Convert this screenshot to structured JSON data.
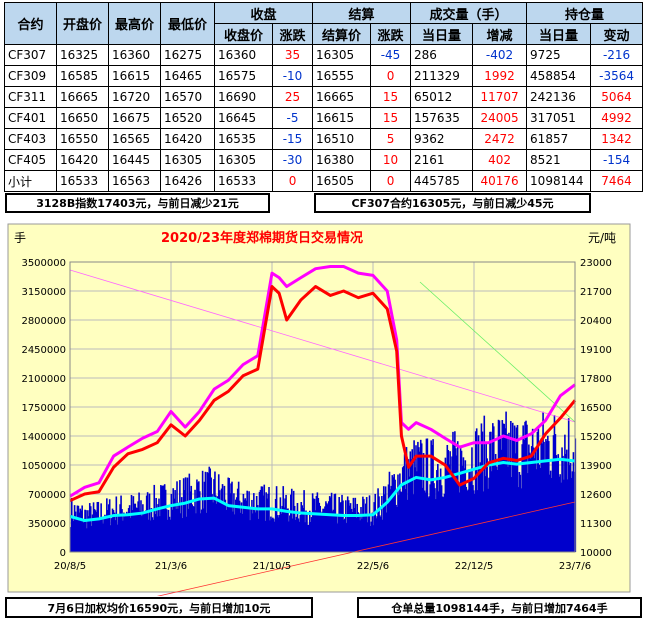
{
  "table": {
    "group_headers": [
      "收盘",
      "结算",
      "成交量（手）",
      "持仓量"
    ],
    "column_headers": [
      "合约",
      "开盘价",
      "最高价",
      "最低价",
      "收盘价",
      "涨跌",
      "结算价",
      "涨跌",
      "当日量",
      "增减",
      "当日量",
      "变动"
    ],
    "rows": [
      [
        "CF307",
        "16325",
        "16360",
        "16275",
        "16360",
        "35",
        "16305",
        "-45",
        "286",
        "-402",
        "9725",
        "-216"
      ],
      [
        "CF309",
        "16585",
        "16615",
        "16465",
        "16575",
        "-10",
        "16555",
        "0",
        "211329",
        "1992",
        "458854",
        "-3564"
      ],
      [
        "CF311",
        "16665",
        "16720",
        "16570",
        "16690",
        "25",
        "16665",
        "15",
        "65012",
        "11707",
        "242136",
        "5064"
      ],
      [
        "CF401",
        "16650",
        "16675",
        "16520",
        "16645",
        "-5",
        "16615",
        "15",
        "157635",
        "24005",
        "317051",
        "4992"
      ],
      [
        "CF403",
        "16550",
        "16565",
        "16420",
        "16535",
        "-15",
        "16510",
        "5",
        "9362",
        "2472",
        "61857",
        "1342"
      ],
      [
        "CF405",
        "16420",
        "16445",
        "16305",
        "16305",
        "-30",
        "16380",
        "10",
        "2161",
        "402",
        "8521",
        "-154"
      ],
      [
        "小计",
        "16533",
        "16563",
        "16426",
        "16533",
        "0",
        "16505",
        "0",
        "445785",
        "40176",
        "1098144",
        "7464"
      ]
    ]
  },
  "notes": {
    "index_note": "3128B指数17403元，与前日减少21元",
    "contract_note": "CF307合约16305元，与前日减少45元",
    "avg_price_note": "7月6日加权均价16590元，与前日增加10元",
    "position_note": "仓单总量1098144手，与前日增加7464手"
  },
  "colors": {
    "background": "#ffffc0",
    "title": "#ff0000",
    "close_line": "#ff0000",
    "high_line": "#ff00ff",
    "open_interest_line": "#00ffff",
    "volume_bars": "#0000cc",
    "header_fill": "#bdd7ee"
  },
  "chart_data": {
    "type": "line",
    "title": "2020/23年度郑棉期货日交易情况",
    "ylabel_left": "手",
    "ylabel_right": "元/吨",
    "x_tick_labels": [
      "20/8/5",
      "21/3/6",
      "21/10/5",
      "22/5/6",
      "22/12/5",
      "23/7/6"
    ],
    "yleft_ticks": [
      0,
      350000,
      700000,
      1050000,
      1400000,
      1750000,
      2100000,
      2450000,
      2800000,
      3150000,
      3500000
    ],
    "yright_ticks": [
      10000,
      11300,
      12600,
      13900,
      15200,
      16500,
      17800,
      19100,
      20400,
      21700,
      23000
    ],
    "yleft_range": [
      0,
      3500000
    ],
    "yright_range": [
      10000,
      23000
    ],
    "grid": true,
    "series": [
      {
        "role": "price_close",
        "axis": "right",
        "x": [
          "20/8/5",
          "20/9/5",
          "20/10/5",
          "20/11/5",
          "20/12/5",
          "21/1/5",
          "21/2/5",
          "21/3/6",
          "21/4/5",
          "21/5/5",
          "21/6/5",
          "21/7/5",
          "21/8/5",
          "21/9/5",
          "21/10/5",
          "21/10/20",
          "21/11/5",
          "21/12/5",
          "22/1/5",
          "22/2/5",
          "22/3/5",
          "22/4/5",
          "22/5/6",
          "22/6/5",
          "22/6/25",
          "22/7/5",
          "22/7/20",
          "22/8/5",
          "22/9/5",
          "22/10/5",
          "22/11/5",
          "22/12/5",
          "23/1/5",
          "23/2/5",
          "23/3/5",
          "23/4/5",
          "23/5/5",
          "23/6/5",
          "23/7/6"
        ],
        "values": [
          12300,
          12600,
          12700,
          13800,
          14400,
          14600,
          14900,
          15700,
          15200,
          15900,
          16800,
          17200,
          17900,
          18200,
          21900,
          21600,
          20400,
          21300,
          21900,
          21500,
          21700,
          21400,
          21600,
          20900,
          19000,
          15200,
          13800,
          14300,
          14300,
          13900,
          13000,
          13300,
          14000,
          14200,
          14100,
          14300,
          15300,
          16000,
          16800
        ]
      },
      {
        "role": "price_high",
        "axis": "right",
        "x": [
          "20/8/5",
          "20/9/5",
          "20/10/5",
          "20/11/5",
          "20/12/5",
          "21/1/5",
          "21/2/5",
          "21/3/6",
          "21/4/5",
          "21/5/5",
          "21/6/5",
          "21/7/5",
          "21/8/5",
          "21/9/5",
          "21/10/5",
          "21/10/20",
          "21/11/5",
          "21/12/5",
          "22/1/5",
          "22/2/5",
          "22/3/5",
          "22/4/5",
          "22/5/6",
          "22/6/5",
          "22/6/25",
          "22/7/5",
          "22/7/20",
          "22/8/5",
          "22/9/5",
          "22/10/5",
          "22/11/5",
          "22/12/5",
          "23/1/5",
          "23/2/5",
          "23/3/5",
          "23/4/5",
          "23/5/5",
          "23/6/5",
          "23/7/6"
        ],
        "values": [
          12500,
          12900,
          13100,
          14300,
          14700,
          15100,
          15400,
          16300,
          15600,
          16300,
          17300,
          17700,
          18400,
          18800,
          22500,
          22300,
          21900,
          22300,
          22700,
          22800,
          22800,
          22500,
          22400,
          21700,
          19500,
          15800,
          15500,
          15800,
          15500,
          15100,
          14700,
          14900,
          14900,
          15200,
          15000,
          15300,
          15900,
          17000,
          17500
        ]
      },
      {
        "role": "open_interest",
        "axis": "left",
        "x": [
          "20/8/5",
          "20/9/5",
          "20/10/5",
          "20/11/5",
          "20/12/5",
          "21/1/5",
          "21/2/5",
          "21/3/6",
          "21/4/5",
          "21/5/5",
          "21/6/5",
          "21/7/5",
          "21/8/5",
          "21/9/5",
          "21/10/5",
          "21/11/5",
          "21/12/5",
          "22/1/5",
          "22/2/5",
          "22/3/5",
          "22/4/5",
          "22/5/6",
          "22/6/5",
          "22/7/5",
          "22/8/5",
          "22/9/5",
          "22/10/5",
          "22/11/5",
          "22/12/5",
          "23/1/5",
          "23/2/5",
          "23/3/5",
          "23/4/5",
          "23/5/5",
          "23/6/5",
          "23/7/6"
        ],
        "values": [
          430000,
          380000,
          400000,
          440000,
          450000,
          470000,
          520000,
          560000,
          590000,
          640000,
          650000,
          560000,
          540000,
          520000,
          520000,
          490000,
          470000,
          460000,
          450000,
          440000,
          440000,
          450000,
          600000,
          810000,
          900000,
          870000,
          900000,
          950000,
          1000000,
          1050000,
          1080000,
          1060000,
          1080000,
          1100000,
          1120000,
          1098144
        ]
      }
    ]
  }
}
